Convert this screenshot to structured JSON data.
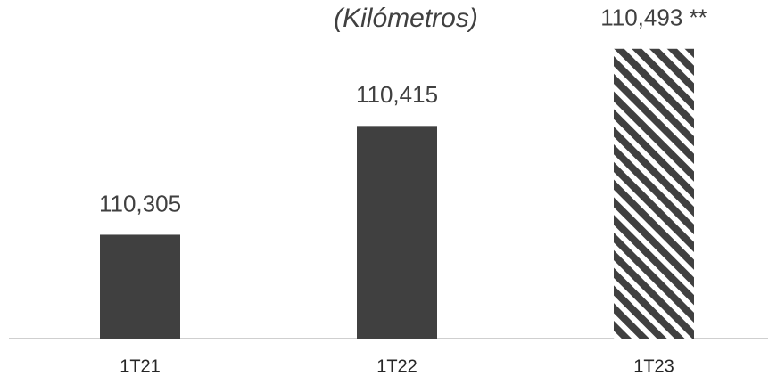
{
  "chart_data": {
    "type": "bar",
    "title": "(Kilómetros)",
    "categories": [
      "1T21",
      "1T22",
      "1T23"
    ],
    "values": [
      110305,
      110415,
      110493
    ],
    "value_labels": [
      "110,305",
      "110,415",
      "110,493 **"
    ],
    "color": "#404040",
    "bar_styles": [
      "solid",
      "solid",
      "hatch"
    ],
    "ylim": [
      110200,
      110500
    ]
  }
}
